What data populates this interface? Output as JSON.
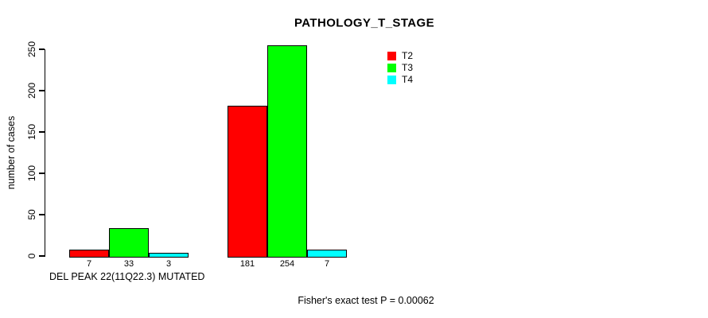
{
  "chart_data": {
    "type": "bar",
    "title": "PATHOLOGY_T_STAGE",
    "xlabel": "DEL PEAK 22(11Q22.3) MUTATED",
    "ylabel": "number of cases",
    "ylim": [
      0,
      250
    ],
    "yticks": [
      0,
      50,
      100,
      150,
      200,
      250
    ],
    "grid": false,
    "groups": 2,
    "series": [
      {
        "name": "T2",
        "color": "#ff0000",
        "values": [
          7,
          181
        ]
      },
      {
        "name": "T3",
        "color": "#00ff00",
        "values": [
          33,
          254
        ]
      },
      {
        "name": "T4",
        "color": "#00ffff",
        "values": [
          3,
          7
        ]
      }
    ],
    "bar_value_labels": [
      [
        7,
        33,
        3
      ],
      [
        181,
        254,
        7
      ]
    ],
    "legend": {
      "position": "top-right",
      "entries": [
        {
          "label": "T2",
          "color": "#ff0000"
        },
        {
          "label": "T3",
          "color": "#00ff00"
        },
        {
          "label": "T4",
          "color": "#00ffff"
        }
      ]
    },
    "footer": "Fisher's exact test P = 0.00062",
    "background": "#ffffff",
    "bar_border_color": "#000000"
  }
}
